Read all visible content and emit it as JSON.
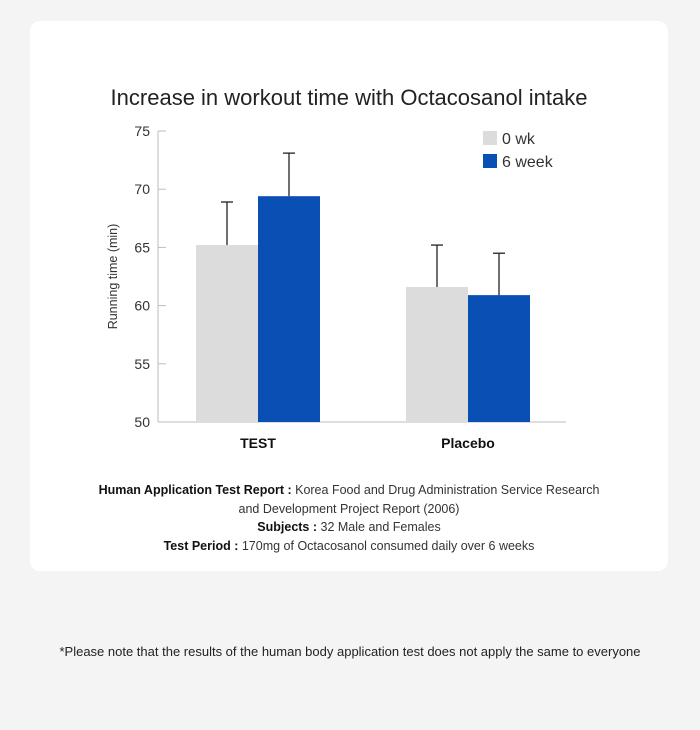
{
  "chart_data": {
    "type": "bar",
    "title": "Increase in workout time with Octacosanol intake",
    "ylabel": "Running time (min)",
    "xlabel": "",
    "ylim": [
      50,
      75
    ],
    "yticks": [
      50,
      55,
      60,
      65,
      70,
      75
    ],
    "categories": [
      "TEST",
      "Placebo"
    ],
    "series": [
      {
        "name": "0 wk",
        "color": "#dcdcdc",
        "values": [
          65.2,
          61.6
        ],
        "error_upper": [
          68.9,
          65.2
        ]
      },
      {
        "name": "6 week",
        "color": "#0a50b4",
        "values": [
          69.4,
          60.9
        ],
        "error_upper": [
          73.1,
          64.5
        ]
      }
    ],
    "legend_position": "top-right",
    "grid": false
  },
  "footnotes": {
    "report_label": "Human Application Test Report :",
    "report_text": "Korea Food and Drug Administration Service Research and Development Project Report (2006)",
    "subjects_label": "Subjects :",
    "subjects_text": "32 Male and Females",
    "period_label": "Test Period :",
    "period_text": "170mg of Octacosanol consumed daily over 6 weeks"
  },
  "disclaimer": "*Please note that the results of the human body application test does not apply the same to everyone"
}
